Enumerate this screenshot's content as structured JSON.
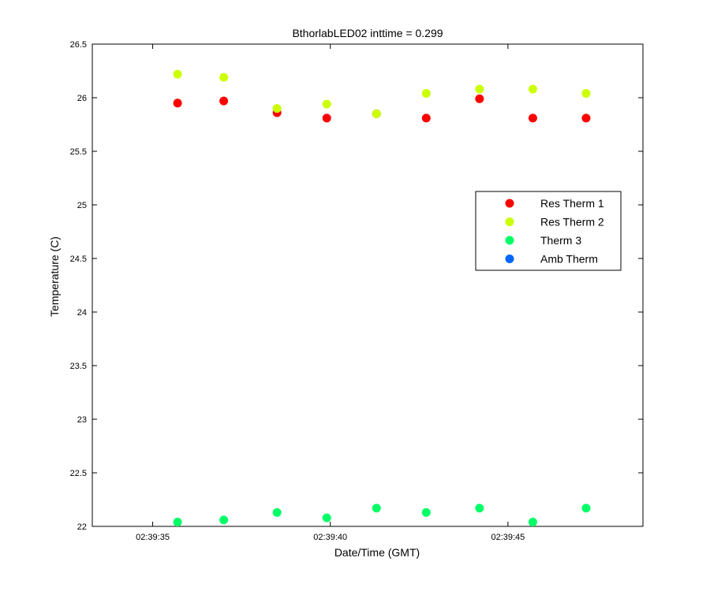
{
  "chart_data": {
    "type": "scatter",
    "title": "BthorlabLED02 inttime = 0.299",
    "xlabel": "Date/Time (GMT)",
    "ylabel": "Temperature (C)",
    "xlim": [
      "02:39:33.3",
      "02:39:48.8"
    ],
    "ylim": [
      22,
      26.5
    ],
    "xticks": [
      "02:39:35",
      "02:39:40",
      "02:39:45"
    ],
    "yticks": [
      "22",
      "22.5",
      "23",
      "23.5",
      "24",
      "24.5",
      "25",
      "25.5",
      "26",
      "26.5"
    ],
    "grid": false,
    "legend_position": "right",
    "series": [
      {
        "name": "Res Therm 1",
        "color": "#ff0000",
        "x": [
          "02:39:35.7",
          "02:39:37.0",
          "02:39:38.5",
          "02:39:39.9",
          "02:39:41.3",
          "02:39:42.7",
          "02:39:44.2",
          "02:39:45.7",
          "02:39:47.2"
        ],
        "y": [
          25.95,
          25.97,
          25.86,
          25.81,
          25.85,
          25.81,
          25.99,
          25.81,
          25.81
        ]
      },
      {
        "name": "Res Therm 2",
        "color": "#ccff00",
        "x": [
          "02:39:35.7",
          "02:39:37.0",
          "02:39:38.5",
          "02:39:39.9",
          "02:39:41.3",
          "02:39:42.7",
          "02:39:44.2",
          "02:39:45.7",
          "02:39:47.2"
        ],
        "y": [
          26.22,
          26.19,
          25.9,
          25.94,
          25.85,
          26.04,
          26.08,
          26.08,
          26.04
        ]
      },
      {
        "name": "Therm 3",
        "color": "#00ff66",
        "x": [
          "02:39:35.7",
          "02:39:37.0",
          "02:39:38.5",
          "02:39:39.9",
          "02:39:41.3",
          "02:39:42.7",
          "02:39:44.2",
          "02:39:45.7",
          "02:39:47.2"
        ],
        "y": [
          22.04,
          22.06,
          22.13,
          22.08,
          22.17,
          22.13,
          22.17,
          22.04,
          22.17
        ]
      },
      {
        "name": "Amb Therm",
        "color": "#0066ff",
        "x": [],
        "y": []
      }
    ]
  }
}
